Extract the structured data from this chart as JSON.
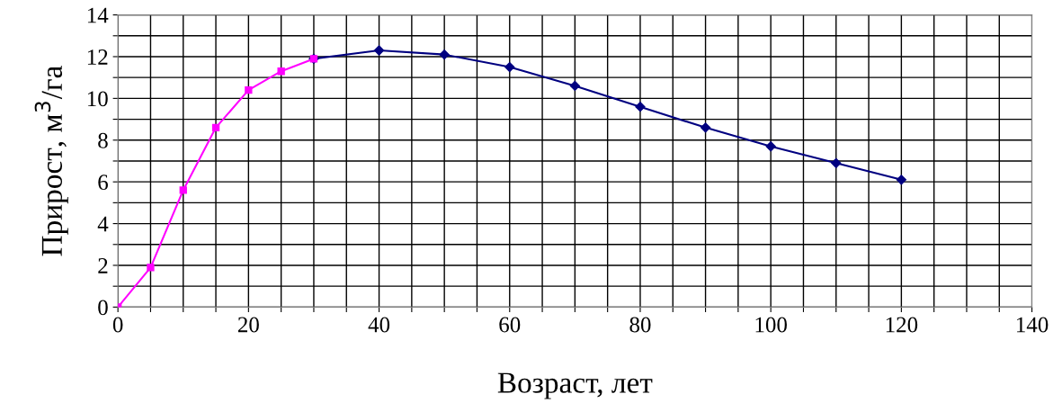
{
  "chart_data": {
    "type": "line",
    "xlabel": "Возраст, лет",
    "ylabel": "Прирост, м$^{3}$/га",
    "series": [
      {
        "color": "#ff00ff",
        "marker": "square",
        "x": [
          0,
          5,
          10,
          15,
          20,
          25,
          30
        ],
        "values": [
          0,
          1.9,
          5.6,
          8.6,
          10.4,
          11.3,
          11.9
        ]
      },
      {
        "color": "#000080",
        "marker": "diamond",
        "x": [
          30,
          40,
          50,
          60,
          70,
          80,
          90,
          100,
          110,
          120
        ],
        "values": [
          11.9,
          12.3,
          12.1,
          11.5,
          10.6,
          9.6,
          8.6,
          7.7,
          6.9,
          6.1
        ]
      }
    ],
    "xlim": [
      0,
      140
    ],
    "ylim": [
      0,
      14
    ],
    "xticks": [
      0,
      {
        "value": 5,
        "label": null
      },
      {
        "value": 10,
        "label": null
      },
      {
        "value": 15,
        "label": null
      },
      20,
      {
        "value": 25,
        "label": null
      },
      {
        "value": 30,
        "label": null
      },
      {
        "value": 35,
        "label": null
      },
      40,
      {
        "value": 45,
        "label": null
      },
      {
        "value": 50,
        "label": null
      },
      {
        "value": 55,
        "label": null
      },
      60,
      {
        "value": 65,
        "label": null
      },
      {
        "value": 70,
        "label": null
      },
      {
        "value": 75,
        "label": null
      },
      80,
      {
        "value": 85,
        "label": null
      },
      {
        "value": 90,
        "label": null
      },
      {
        "value": 95,
        "label": null
      },
      100,
      {
        "value": 105,
        "label": null
      },
      {
        "value": 110,
        "label": null
      },
      {
        "value": 115,
        "label": null
      },
      120,
      {
        "value": 125,
        "label": null
      },
      {
        "value": 130,
        "label": null
      },
      {
        "value": 135,
        "label": null
      },
      140
    ],
    "yticks": [
      0,
      {
        "value": 1,
        "label": null
      },
      2,
      {
        "value": 3,
        "label": null
      },
      4,
      {
        "value": 5,
        "label": null
      },
      6,
      {
        "value": 7,
        "label": null
      },
      8,
      {
        "value": 9,
        "label": null
      },
      10,
      {
        "value": 11,
        "label": null
      },
      12,
      {
        "value": 13,
        "label": null
      },
      14
    ],
    "grid": true,
    "line_style": "solid"
  }
}
